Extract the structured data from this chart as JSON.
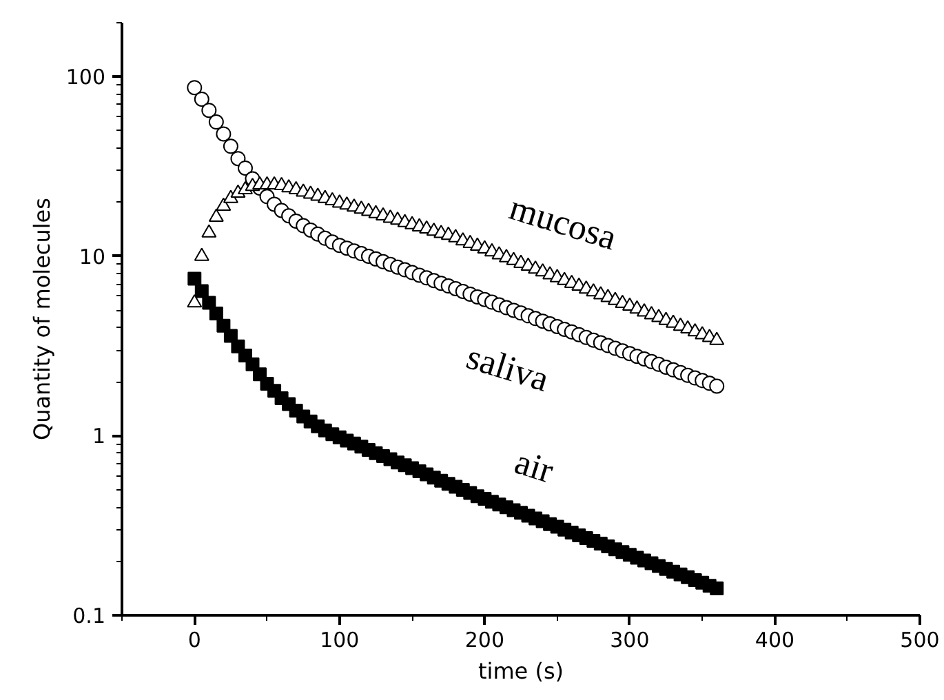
{
  "chart_data": {
    "type": "scatter",
    "xlabel": "time (s)",
    "ylabel": "Quantity of molecules",
    "xlim": [
      -50,
      500
    ],
    "xticks": [
      0,
      100,
      200,
      300,
      400,
      500
    ],
    "ylim": [
      0.1,
      200
    ],
    "yticks": [
      0.1,
      1,
      10,
      100
    ],
    "log": "y",
    "grid": false,
    "x": [
      0,
      5,
      10,
      15,
      20,
      25,
      30,
      35,
      40,
      45,
      50,
      55,
      60,
      65,
      70,
      75,
      80,
      85,
      90,
      95,
      100,
      105,
      110,
      115,
      120,
      125,
      130,
      135,
      140,
      145,
      150,
      155,
      160,
      165,
      170,
      175,
      180,
      185,
      190,
      195,
      200,
      205,
      210,
      215,
      220,
      225,
      230,
      235,
      240,
      245,
      250,
      255,
      260,
      265,
      270,
      275,
      280,
      285,
      290,
      295,
      300,
      305,
      310,
      315,
      320,
      325,
      330,
      335,
      340,
      345,
      350,
      355,
      360
    ],
    "series": [
      {
        "name": "air",
        "color": "#000000",
        "marker": "square",
        "values": [
          7.5,
          6.4,
          5.5,
          4.8,
          4.1,
          3.6,
          3.15,
          2.8,
          2.5,
          2.2,
          1.95,
          1.78,
          1.62,
          1.5,
          1.38,
          1.28,
          1.2,
          1.13,
          1.07,
          1.02,
          0.98,
          0.94,
          0.905,
          0.87,
          0.835,
          0.8,
          0.77,
          0.74,
          0.71,
          0.685,
          0.66,
          0.634,
          0.61,
          0.585,
          0.562,
          0.54,
          0.52,
          0.5,
          0.48,
          0.46,
          0.445,
          0.429,
          0.414,
          0.4,
          0.385,
          0.372,
          0.359,
          0.346,
          0.334,
          0.322,
          0.311,
          0.3,
          0.289,
          0.279,
          0.269,
          0.26,
          0.251,
          0.242,
          0.233,
          0.225,
          0.217,
          0.209,
          0.202,
          0.195,
          0.188,
          0.181,
          0.175,
          0.169,
          0.163,
          0.157,
          0.152,
          0.146,
          0.141
        ]
      },
      {
        "name": "saliva",
        "color": "#000000",
        "marker": "circle",
        "values": [
          87,
          75,
          65,
          56,
          48,
          41,
          35,
          31,
          27,
          24,
          21.5,
          19.5,
          18,
          16.8,
          15.7,
          14.8,
          14,
          13.3,
          12.6,
          12,
          11.5,
          11.1,
          10.7,
          10.35,
          10,
          9.66,
          9.33,
          9.01,
          8.7,
          8.41,
          8.12,
          7.84,
          7.58,
          7.32,
          7.07,
          6.83,
          6.6,
          6.37,
          6.15,
          5.94,
          5.74,
          5.55,
          5.36,
          5.17,
          5,
          4.83,
          4.66,
          4.5,
          4.35,
          4.2,
          4.06,
          3.92,
          3.79,
          3.66,
          3.53,
          3.41,
          3.3,
          3.18,
          3.07,
          2.97,
          2.87,
          2.77,
          2.68,
          2.59,
          2.5,
          2.41,
          2.33,
          2.25,
          2.17,
          2.1,
          2.03,
          1.96,
          1.89
        ]
      },
      {
        "name": "mucosa",
        "color": "#000000",
        "marker": "triangle",
        "values": [
          5.5,
          10,
          13.5,
          16.5,
          19,
          21,
          22.5,
          23.5,
          24.5,
          25,
          25,
          25,
          24.8,
          24.1,
          23.5,
          22.8,
          22.2,
          21.6,
          21,
          20.4,
          19.8,
          19.3,
          18.8,
          18.3,
          17.8,
          17.3,
          16.8,
          16.3,
          15.9,
          15.4,
          15,
          14.6,
          14.2,
          13.8,
          13.4,
          13.1,
          12.7,
          12.2,
          11.8,
          11.4,
          11,
          10.6,
          10.2,
          9.83,
          9.48,
          9.14,
          8.81,
          8.49,
          8.19,
          7.89,
          7.61,
          7.34,
          7.07,
          6.82,
          6.57,
          6.34,
          6.11,
          5.89,
          5.68,
          5.47,
          5.28,
          5.09,
          4.9,
          4.73,
          4.56,
          4.39,
          4.24,
          4.08,
          3.94,
          3.8,
          3.66,
          3.53,
          3.4
        ]
      }
    ]
  }
}
